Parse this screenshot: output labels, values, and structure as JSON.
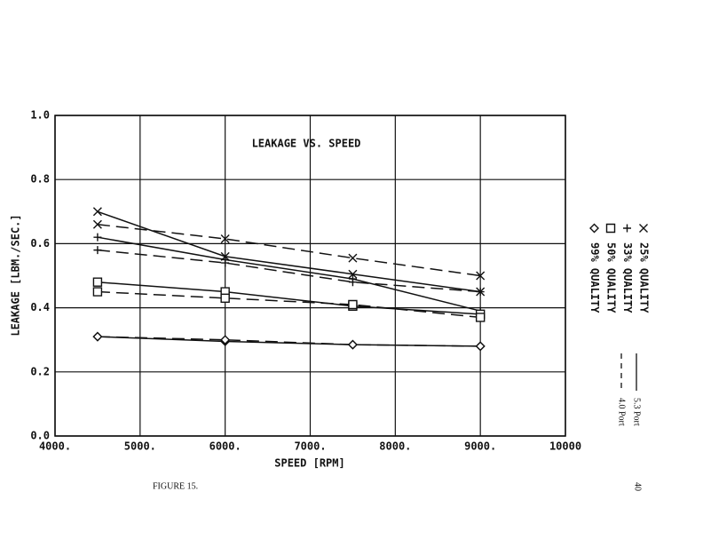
{
  "chart_data": {
    "type": "line",
    "title": "LEAKAGE VS. SPEED",
    "x_label": "SPEED [RPM]",
    "y_label": "LEAKAGE [LBM./SEC.]",
    "x": [
      4500,
      6000,
      7500,
      9000
    ],
    "xlim": [
      4000,
      10000
    ],
    "xticks": [
      {
        "value": 4000,
        "label": "4000."
      },
      {
        "value": 5000,
        "label": "5000."
      },
      {
        "value": 6000,
        "label": "6000."
      },
      {
        "value": 7000,
        "label": "7000."
      },
      {
        "value": 8000,
        "label": "8000."
      },
      {
        "value": 9000,
        "label": "9000."
      },
      10000
    ],
    "ylim": [
      0,
      1
    ],
    "yticks": [
      {
        "value": 0,
        "label": "0.0"
      },
      0.2,
      0.4,
      0.6,
      0.8,
      {
        "value": 1,
        "label": "1.0"
      }
    ],
    "grid": true,
    "series": [
      {
        "marker": "x",
        "dash": "solid",
        "color": "#111",
        "values": [
          0.7,
          0.56,
          0.505,
          0.45
        ]
      },
      {
        "marker": "x",
        "dash": "dashed",
        "color": "#111",
        "values": [
          0.66,
          0.615,
          0.555,
          0.5
        ]
      },
      {
        "marker": "plus",
        "dash": "solid",
        "color": "#111",
        "values": [
          0.62,
          0.55,
          0.49,
          0.39
        ]
      },
      {
        "marker": "plus",
        "dash": "dashed",
        "color": "#111",
        "values": [
          0.58,
          0.54,
          0.48,
          0.45
        ]
      },
      {
        "marker": "square",
        "dash": "solid",
        "color": "#111",
        "values": [
          0.48,
          0.45,
          0.405,
          0.38
        ]
      },
      {
        "marker": "square",
        "dash": "dashed",
        "color": "#111",
        "values": [
          0.45,
          0.43,
          0.41,
          0.37
        ]
      },
      {
        "marker": "diamond",
        "dash": "solid",
        "color": "#111",
        "values": [
          0.31,
          0.295,
          0.285,
          0.28
        ]
      },
      {
        "marker": "diamond",
        "dash": "dashed",
        "color": "#111",
        "values": [
          0.31,
          0.3,
          0.285,
          0.28
        ]
      }
    ],
    "quality_legend": [
      {
        "label": "25% QUALITY",
        "marker": "x"
      },
      {
        "label": "33% QUALITY",
        "marker": "plus"
      },
      {
        "label": "50% QUALITY",
        "marker": "square"
      },
      {
        "label": "99% QUALITY",
        "marker": "diamond"
      }
    ],
    "port_legend": [
      {
        "label": "5.3 Port",
        "dash": "solid"
      },
      {
        "label": "4.0 Port",
        "dash": "dashed"
      }
    ]
  },
  "figure_caption": "FIGURE 15.",
  "page_number": "40"
}
